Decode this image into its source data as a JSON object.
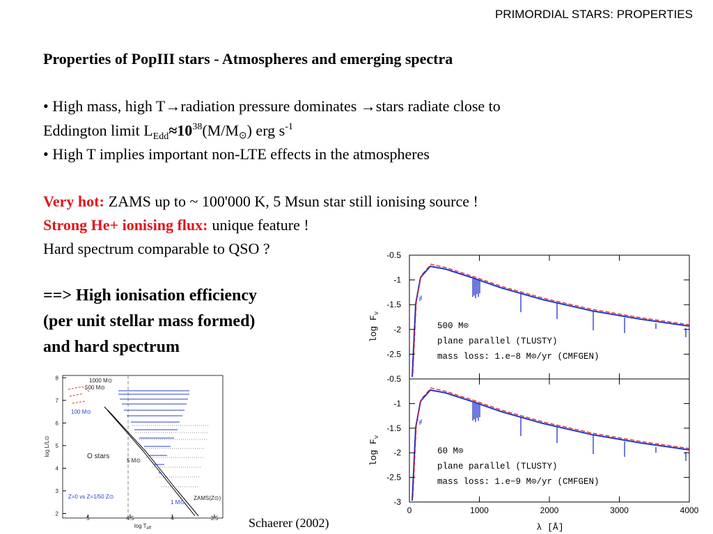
{
  "header": "PRIMORDIAL STARS: PROPERTIES",
  "heading": "Properties of PopIII stars - Atmospheres and emerging spectra",
  "bullets": [
    {
      "line1": "• High mass, high T→radiation pressure dominates →stars radiate close to",
      "line2": [
        "Eddington limit L",
        "Edd",
        "≈10",
        "38",
        "(M/M",
        "⊙",
        ") erg s",
        "-1"
      ]
    },
    {
      "line1": "• High T  implies important non-LTE effects in the atmospheres"
    }
  ],
  "highlights": [
    {
      "label": "Very hot:",
      "text": "ZAMS up to ~ 100'000 K,  5 Msun star still ionising source !"
    },
    {
      "label": "Strong He+ ionising flux:",
      "text": "unique feature !"
    }
  ],
  "hard_spectrum": "Hard spectrum comparable to QSO ?",
  "conclusion": [
    "==> High ionisation efficiency",
    "(per unit stellar mass formed)",
    "and hard spectrum"
  ],
  "credit": "Schaerer (2002)",
  "spectra": {
    "xlim": [
      0,
      4000
    ],
    "xticks": [
      0,
      1000,
      2000,
      3000,
      4000
    ],
    "xlabel": "λ [Å]",
    "ylabel": [
      "log F",
      "ν"
    ],
    "panels": [
      {
        "ylim": [
          -3,
          -0.5
        ],
        "yticks": [
          -0.5,
          -1,
          -1.5,
          -2,
          -2.5
        ],
        "annotations": [
          "500 M⊙",
          "plane parallel (TLUSTY)",
          "mass loss: 1.e−8 M⊙/yr (CMFGEN)"
        ]
      },
      {
        "ylim": [
          -3,
          -0.5
        ],
        "yticks": [
          -0.5,
          -1,
          -1.5,
          -2,
          -2.5,
          -3
        ],
        "annotations": [
          "60 M⊙",
          "plane parallel (TLUSTY)",
          "mass loss: 1.e−9 M⊙/yr (CMFGEN)"
        ]
      }
    ]
  },
  "hr_diagram": {
    "xlim": [
      5.3,
      3.4
    ],
    "xticks": [
      5,
      4.5,
      4,
      3.5
    ],
    "ylim": [
      1.8,
      8.1
    ],
    "yticks": [
      2,
      3,
      4,
      5,
      6,
      7,
      8
    ],
    "xlabel": [
      "log T",
      "eff"
    ],
    "ylabel": "log L/L⊙",
    "annotations": [
      "1000 M⊙",
      "500 M⊙",
      "100 M⊙",
      "O stars",
      "5 M⊙",
      "1 M⊙",
      "ZAMS(Z⊙)",
      "Z=0 vs Z=1/50 Z⊙"
    ]
  }
}
